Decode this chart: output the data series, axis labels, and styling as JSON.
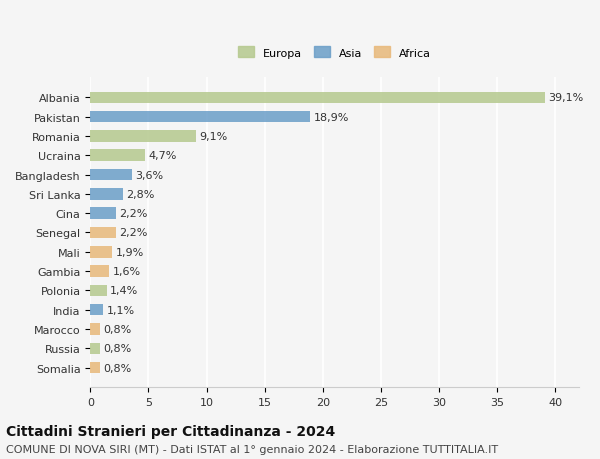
{
  "categories": [
    "Albania",
    "Pakistan",
    "Romania",
    "Ucraina",
    "Bangladesh",
    "Sri Lanka",
    "Cina",
    "Senegal",
    "Mali",
    "Gambia",
    "Polonia",
    "India",
    "Marocco",
    "Russia",
    "Somalia"
  ],
  "values": [
    39.1,
    18.9,
    9.1,
    4.7,
    3.6,
    2.8,
    2.2,
    2.2,
    1.9,
    1.6,
    1.4,
    1.1,
    0.8,
    0.8,
    0.8
  ],
  "labels": [
    "39,1%",
    "18,9%",
    "9,1%",
    "4,7%",
    "3,6%",
    "2,8%",
    "2,2%",
    "2,2%",
    "1,9%",
    "1,6%",
    "1,4%",
    "1,1%",
    "0,8%",
    "0,8%",
    "0,8%"
  ],
  "continents": [
    "Europa",
    "Asia",
    "Europa",
    "Europa",
    "Asia",
    "Asia",
    "Asia",
    "Africa",
    "Africa",
    "Africa",
    "Europa",
    "Asia",
    "Africa",
    "Europa",
    "Africa"
  ],
  "colors": {
    "Europa": "#b5c98e",
    "Asia": "#6b9ec8",
    "Africa": "#e8b87a"
  },
  "legend_colors": {
    "Europa": "#b5c98e",
    "Asia": "#6b9ec8",
    "Africa": "#e8b87a"
  },
  "xlim": [
    0,
    42
  ],
  "xticks": [
    0,
    5,
    10,
    15,
    20,
    25,
    30,
    35,
    40
  ],
  "title": "Cittadini Stranieri per Cittadinanza - 2024",
  "subtitle": "COMUNE DI NOVA SIRI (MT) - Dati ISTAT al 1° gennaio 2024 - Elaborazione TUTTITALIA.IT",
  "background_color": "#f5f5f5",
  "grid_color": "#ffffff",
  "title_fontsize": 10,
  "subtitle_fontsize": 8,
  "label_fontsize": 8,
  "tick_fontsize": 8
}
